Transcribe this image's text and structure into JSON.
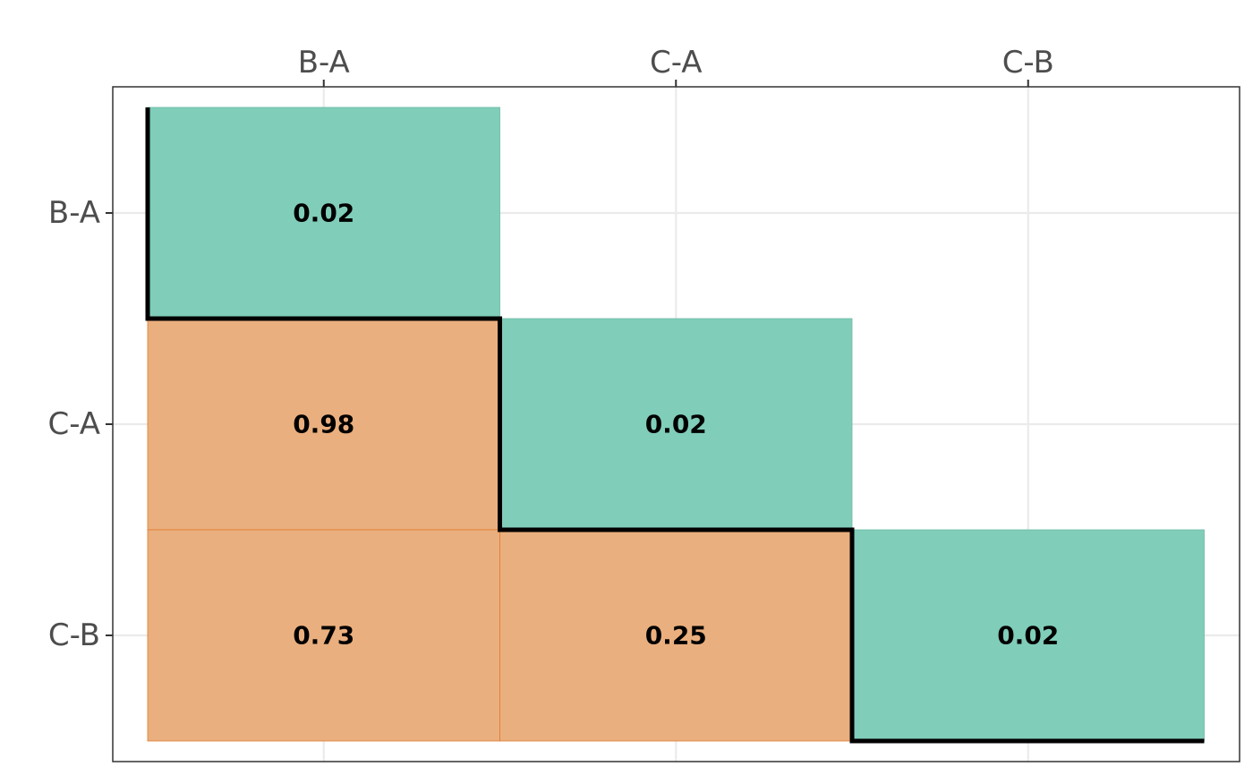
{
  "chart_data": {
    "type": "heatmap",
    "title": "",
    "xlabel": "",
    "ylabel": "",
    "x_categories": [
      "B-A",
      "C-A",
      "C-B"
    ],
    "y_categories": [
      "B-A",
      "C-A",
      "C-B"
    ],
    "x_axis_position": "top",
    "grid": true,
    "legend": "none",
    "cells": [
      {
        "x": "B-A",
        "y": "B-A",
        "value": 0.02,
        "label": "0.02",
        "group": "diagonal"
      },
      {
        "x": "B-A",
        "y": "C-A",
        "value": 0.98,
        "label": "0.98",
        "group": "lower"
      },
      {
        "x": "C-A",
        "y": "C-A",
        "value": 0.02,
        "label": "0.02",
        "group": "diagonal"
      },
      {
        "x": "B-A",
        "y": "C-B",
        "value": 0.73,
        "label": "0.73",
        "group": "lower"
      },
      {
        "x": "C-A",
        "y": "C-B",
        "value": 0.25,
        "label": "0.25",
        "group": "lower"
      },
      {
        "x": "C-B",
        "y": "C-B",
        "value": 0.02,
        "label": "0.02",
        "group": "diagonal"
      }
    ],
    "colors": {
      "diagonal_fill": "#80cdb9",
      "diagonal_stroke": "#6cbba6",
      "lower_fill": "#eaaf7e",
      "lower_stroke": "#e07a2e",
      "staircase": "#000000",
      "grid": "#ebebeb",
      "panel_border": "#333333",
      "tick": "#333333"
    }
  }
}
